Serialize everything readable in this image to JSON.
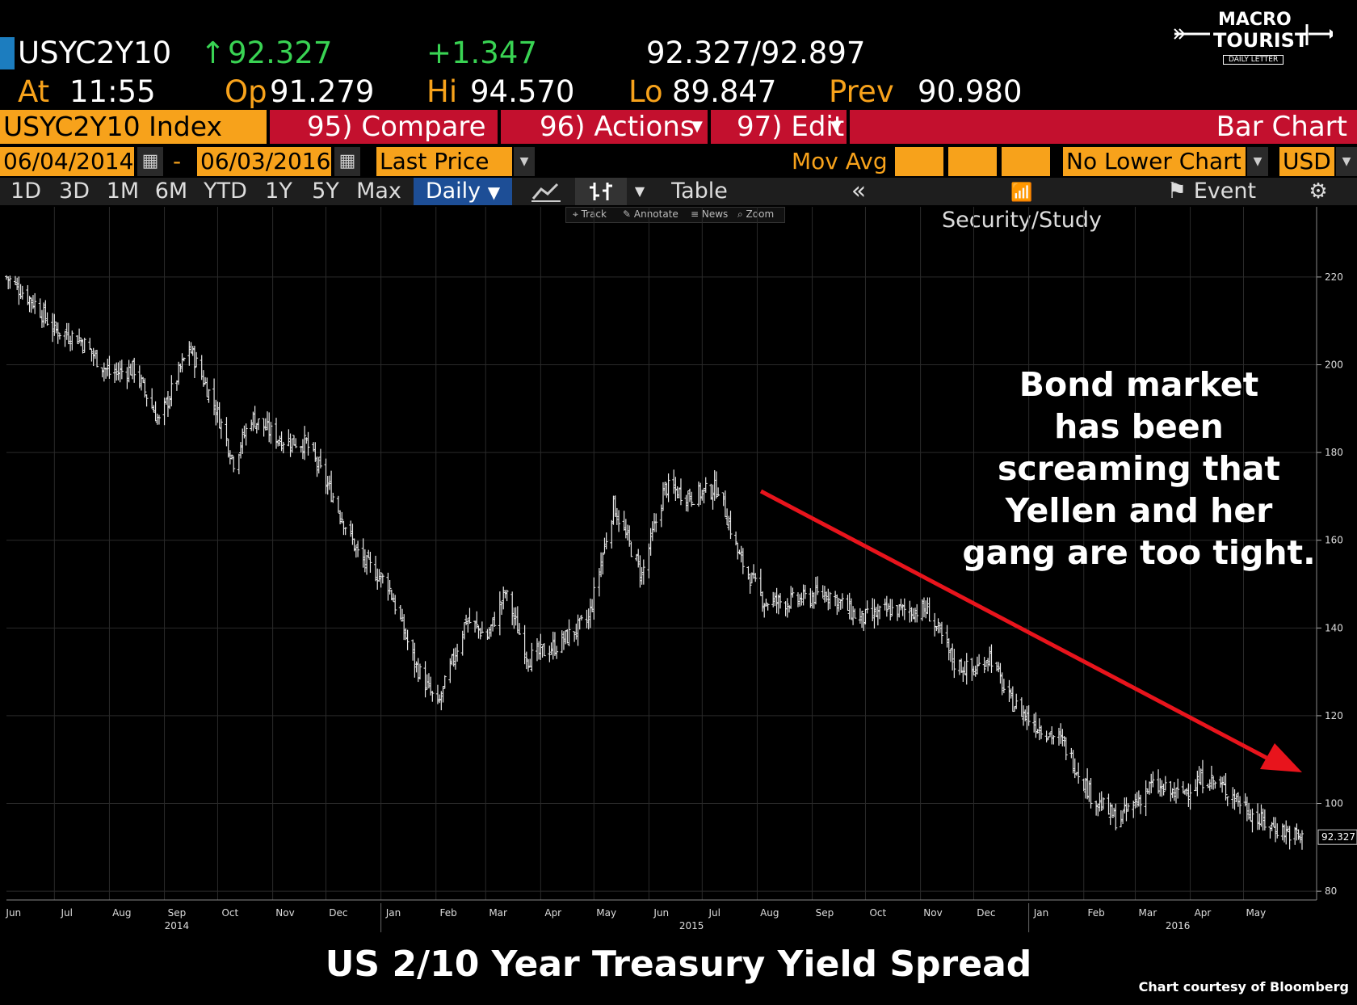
{
  "header": {
    "ticker": "USYC2Y10",
    "arrow": "↑",
    "last": "92.327",
    "change": "+1.347",
    "bid_ask": "92.327/92.897",
    "at_label": "At",
    "time": "11:55",
    "op_label": "Op",
    "open": "91.279",
    "hi_label": "Hi",
    "high": "94.570",
    "lo_label": "Lo",
    "low": "89.847",
    "prev_label": "Prev",
    "prev": "90.980"
  },
  "logo": {
    "line1": "MACRO",
    "line2": "TOURIST",
    "line3": "DAILY LETTER"
  },
  "toolbar": {
    "security": "USYC2Y10 Index",
    "compare": "95) Compare",
    "actions": "96) Actions",
    "edit": "97) Edit",
    "chart_type": "Bar Chart"
  },
  "range": {
    "start": "06/04/2014",
    "dash": "-",
    "end": "06/03/2016",
    "field": "Last Price",
    "mov_avg": "Mov Avg",
    "lower": "No Lower Chart",
    "currency": "USD"
  },
  "tabs": [
    "1D",
    "3D",
    "1M",
    "6M",
    "YTD",
    "1Y",
    "5Y",
    "Max"
  ],
  "period": "Daily",
  "table_label": "Table",
  "security_study": "Security/Study",
  "event": "Event",
  "mini_tools": [
    "Track",
    "Annotate",
    "News",
    "Zoom"
  ],
  "annotation": [
    "Bond market",
    "has been",
    "screaming that",
    "Yellen and her",
    "gang are too tight."
  ],
  "footer": {
    "title": "US 2/10 Year Treasury Yield Spread",
    "credit": "Chart courtesy of Bloomberg"
  },
  "colors": {
    "orange": "#f7a21b",
    "red": "#c3102e",
    "green": "#39d353",
    "arrow": "#e8141c",
    "tab_active": "#1d4e96"
  },
  "chart_data": {
    "type": "bar",
    "subtype": "OHLC bar chart",
    "x_axis": {
      "months": [
        "Jun",
        "Jul",
        "Aug",
        "Sep",
        "Oct",
        "Nov",
        "Dec",
        "Jan",
        "Feb",
        "Mar",
        "Apr",
        "May",
        "Jun",
        "Jul",
        "Aug",
        "Sep",
        "Oct",
        "Nov",
        "Dec",
        "Jan",
        "Feb",
        "Mar",
        "Apr",
        "May"
      ],
      "years": [
        "2014",
        "2015",
        "2016"
      ],
      "range": [
        "2014-06-04",
        "2016-06-03"
      ]
    },
    "y_axis": {
      "ticks": [
        80,
        100,
        120,
        140,
        160,
        180,
        200,
        220
      ],
      "ylim": [
        78,
        236
      ],
      "side": "right"
    },
    "last_price_label": "92.327",
    "grid": true,
    "anchors": [
      [
        "2014-06-04",
        220
      ],
      [
        "2014-06-20",
        214
      ],
      [
        "2014-07-01",
        208
      ],
      [
        "2014-07-15",
        206
      ],
      [
        "2014-08-01",
        198
      ],
      [
        "2014-08-15",
        199
      ],
      [
        "2014-08-29",
        187
      ],
      [
        "2014-09-15",
        204
      ],
      [
        "2014-09-30",
        190
      ],
      [
        "2014-10-10",
        178
      ],
      [
        "2014-10-20",
        188
      ],
      [
        "2014-11-05",
        183
      ],
      [
        "2014-11-20",
        182
      ],
      [
        "2014-12-05",
        170
      ],
      [
        "2014-12-20",
        156
      ],
      [
        "2015-01-05",
        150
      ],
      [
        "2015-01-20",
        132
      ],
      [
        "2015-02-02",
        122
      ],
      [
        "2015-02-18",
        142
      ],
      [
        "2015-03-02",
        138
      ],
      [
        "2015-03-12",
        148
      ],
      [
        "2015-03-25",
        133
      ],
      [
        "2015-04-10",
        136
      ],
      [
        "2015-04-28",
        142
      ],
      [
        "2015-05-12",
        168
      ],
      [
        "2015-05-28",
        152
      ],
      [
        "2015-06-10",
        172
      ],
      [
        "2015-06-25",
        170
      ],
      [
        "2015-07-10",
        172
      ],
      [
        "2015-07-22",
        156
      ],
      [
        "2015-08-05",
        146
      ],
      [
        "2015-08-20",
        146
      ],
      [
        "2015-09-10",
        148
      ],
      [
        "2015-09-28",
        142
      ],
      [
        "2015-10-15",
        144
      ],
      [
        "2015-11-05",
        144
      ],
      [
        "2015-11-20",
        132
      ],
      [
        "2015-12-01",
        130
      ],
      [
        "2015-12-10",
        134
      ],
      [
        "2015-12-20",
        124
      ],
      [
        "2016-01-05",
        118
      ],
      [
        "2016-01-20",
        114
      ],
      [
        "2016-02-05",
        102
      ],
      [
        "2016-02-20",
        96
      ],
      [
        "2016-03-10",
        104
      ],
      [
        "2016-03-25",
        102
      ],
      [
        "2016-04-10",
        106
      ],
      [
        "2016-04-25",
        102
      ],
      [
        "2016-05-10",
        96
      ],
      [
        "2016-06-03",
        92
      ]
    ]
  }
}
